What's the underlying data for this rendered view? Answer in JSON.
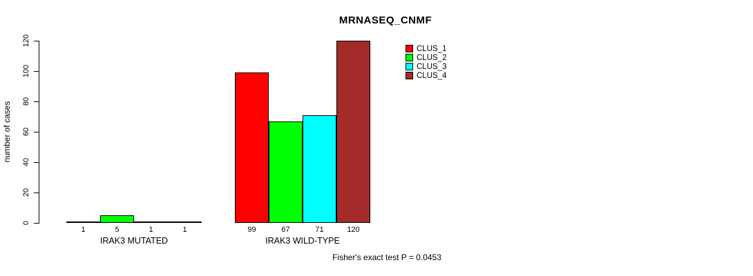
{
  "chart_data": {
    "type": "bar",
    "title": "MRNASEQ_CNMF",
    "ylabel": "number of cases",
    "xlabel": "",
    "ylim": [
      0,
      120
    ],
    "yticks": [
      0,
      20,
      40,
      60,
      80,
      100,
      120
    ],
    "grid": false,
    "legend_position": "top-right-inside",
    "show_bar_value_labels": true,
    "categories": [
      "IRAK3 MUTATED",
      "IRAK3 WILD-TYPE"
    ],
    "series": [
      {
        "name": "CLUS_1",
        "color": "#FF0000",
        "values": [
          1,
          99
        ]
      },
      {
        "name": "CLUS_2",
        "color": "#00FF00",
        "values": [
          5,
          67
        ]
      },
      {
        "name": "CLUS_3",
        "color": "#00FFFF",
        "values": [
          1,
          71
        ]
      },
      {
        "name": "CLUS_4",
        "color": "#A52A2A",
        "values": [
          1,
          120
        ]
      }
    ],
    "annotation": "Fisher's exact test P = 0.0453",
    "axis_color": "#000000",
    "background_color": "#FFFFFF"
  }
}
